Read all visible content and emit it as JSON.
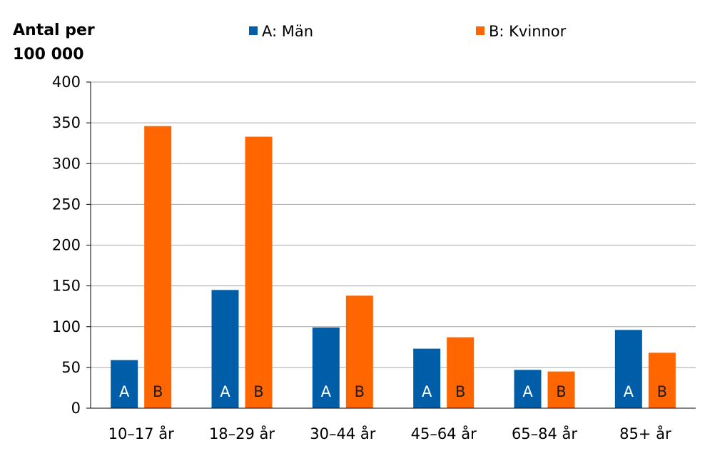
{
  "chart_data": {
    "type": "bar",
    "ylabel_line1": "Antal per",
    "ylabel_line2": "100 000",
    "categories": [
      "10–17 år",
      "18–29 år",
      "30–44 år",
      "45–64 år",
      "65–84 år",
      "85+ år"
    ],
    "series": [
      {
        "name": "A: Män",
        "letter": "A",
        "color": "#005ea8",
        "values": [
          59,
          145,
          99,
          73,
          47,
          96
        ]
      },
      {
        "name": "B: Kvinnor",
        "letter": "B",
        "color": "#ff6600",
        "values": [
          346,
          333,
          138,
          87,
          45,
          68
        ]
      }
    ],
    "ylim": [
      0,
      400
    ],
    "yticks": [
      0,
      50,
      100,
      150,
      200,
      250,
      300,
      350,
      400
    ],
    "grid": true,
    "legend_position": "top"
  }
}
